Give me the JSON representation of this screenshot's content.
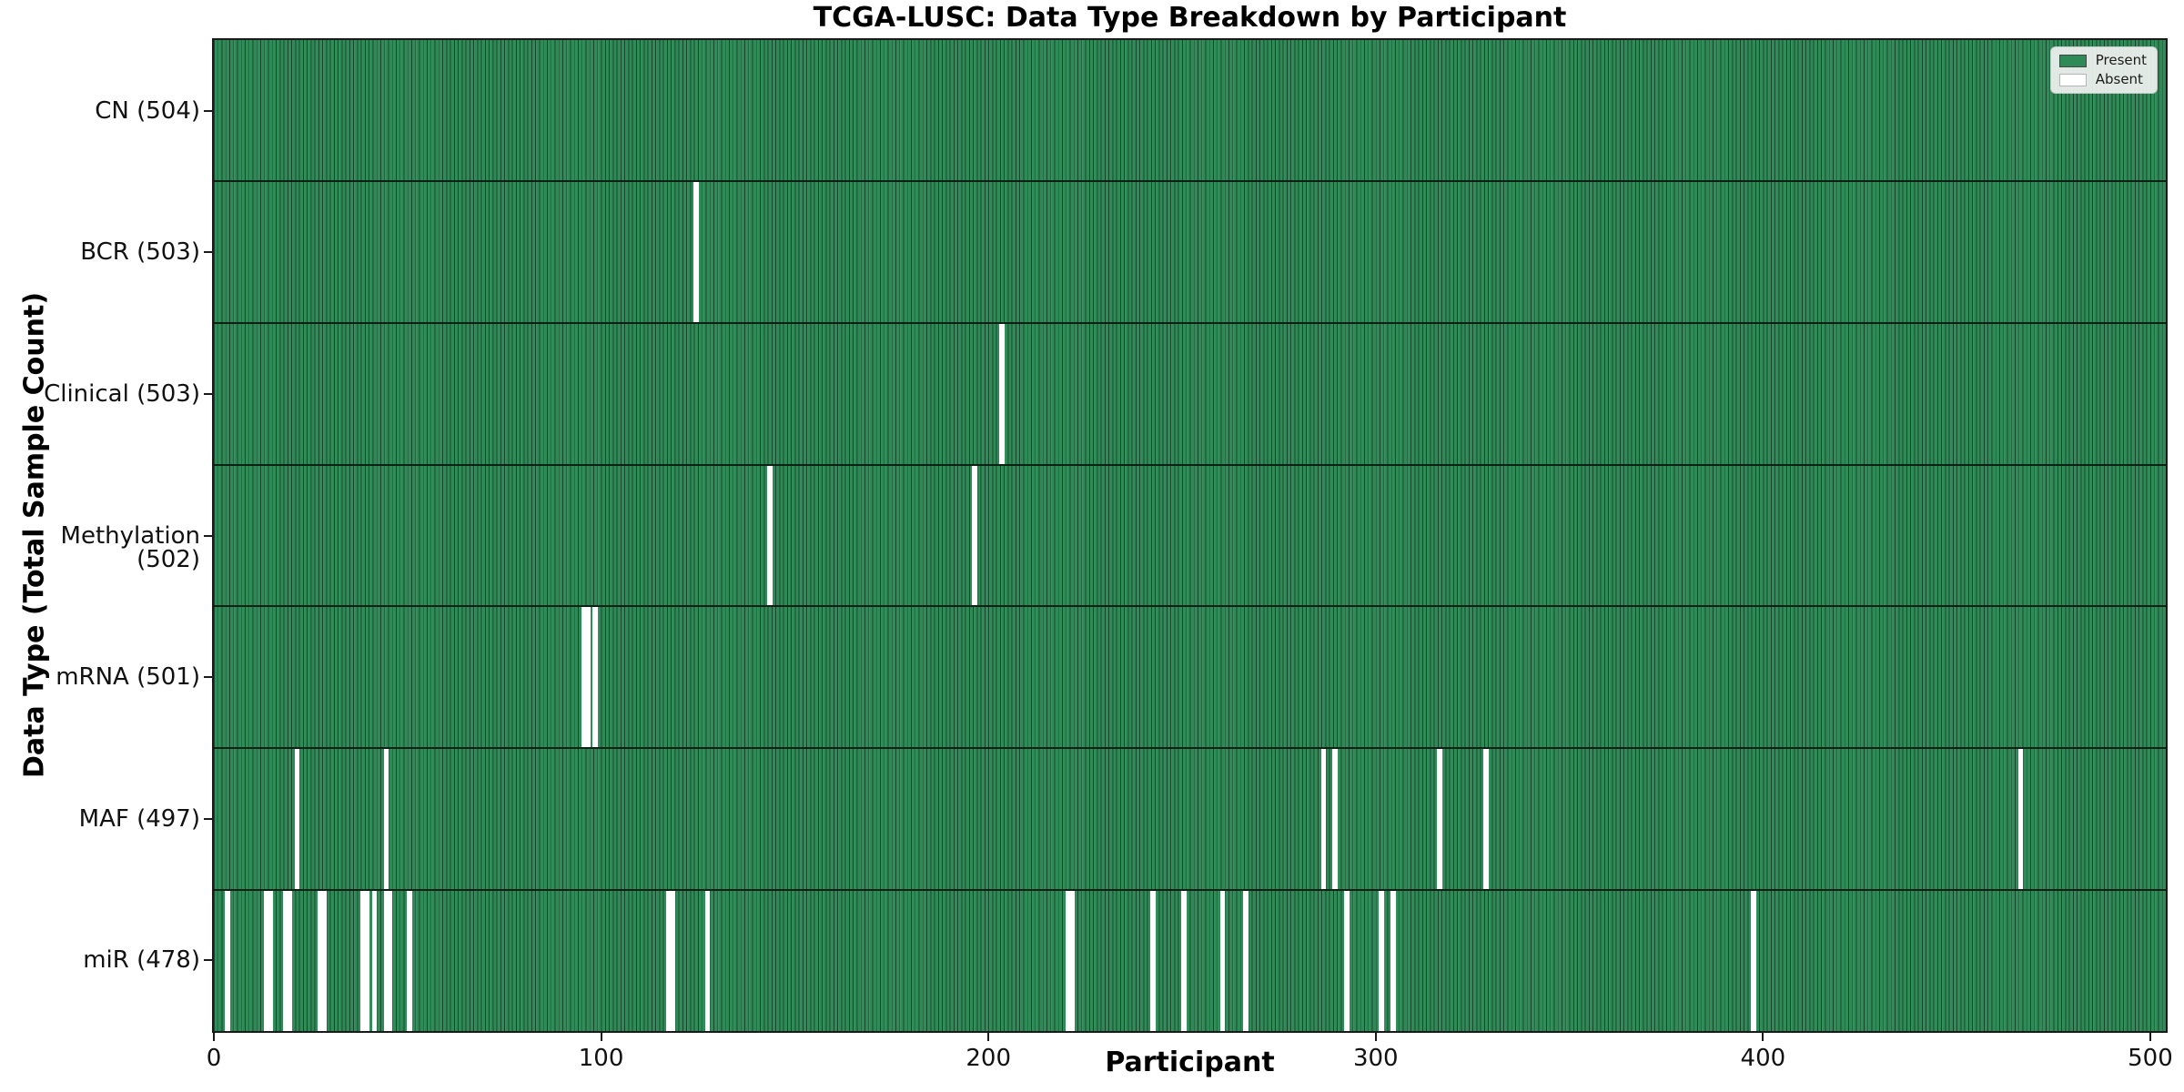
{
  "chart_data": {
    "type": "heatmap",
    "title": "TCGA-LUSC: Data Type Breakdown by Participant",
    "xlabel": "Participant",
    "ylabel": "Data Type (Total Sample Count)",
    "x_ticks": [
      0,
      100,
      200,
      300,
      400,
      500
    ],
    "x_range": [
      0,
      504
    ],
    "n_participants": 504,
    "grid": false,
    "legend_position": "upper right",
    "legend": [
      {
        "label": "Present",
        "color": "#2e8b57"
      },
      {
        "label": "Absent",
        "color": "#ffffff"
      }
    ],
    "rows": [
      {
        "label": "CN (504)",
        "data_type": "CN",
        "present_count": 504,
        "absent_indices": []
      },
      {
        "label": "BCR (503)",
        "data_type": "BCR",
        "present_count": 503,
        "absent_indices": [
          124
        ]
      },
      {
        "label": "Clinical (503)",
        "data_type": "Clinical",
        "present_count": 503,
        "absent_indices": [
          203
        ]
      },
      {
        "label": "Methylation (502)",
        "data_type": "Methylation",
        "present_count": 502,
        "absent_indices": [
          143,
          196
        ]
      },
      {
        "label": "mRNA (501)",
        "data_type": "mRNA",
        "present_count": 501,
        "absent_indices": [
          95,
          96,
          98
        ]
      },
      {
        "label": "MAF (497)",
        "data_type": "MAF",
        "present_count": 497,
        "absent_indices": [
          21,
          44,
          286,
          289,
          316,
          328,
          466
        ]
      },
      {
        "label": "miR (478)",
        "data_type": "miR",
        "present_count": 478,
        "absent_indices": [
          3,
          13,
          14,
          18,
          19,
          27,
          28,
          38,
          39,
          41,
          44,
          45,
          50,
          117,
          118,
          127,
          220,
          221,
          242,
          250,
          260,
          266,
          292,
          301,
          304,
          397
        ]
      }
    ],
    "colors": {
      "present": "#2e8b57",
      "absent": "#ffffff",
      "cell_edge": "rgba(0,0,0,0.5)",
      "spine": "#1a1a1a"
    }
  }
}
